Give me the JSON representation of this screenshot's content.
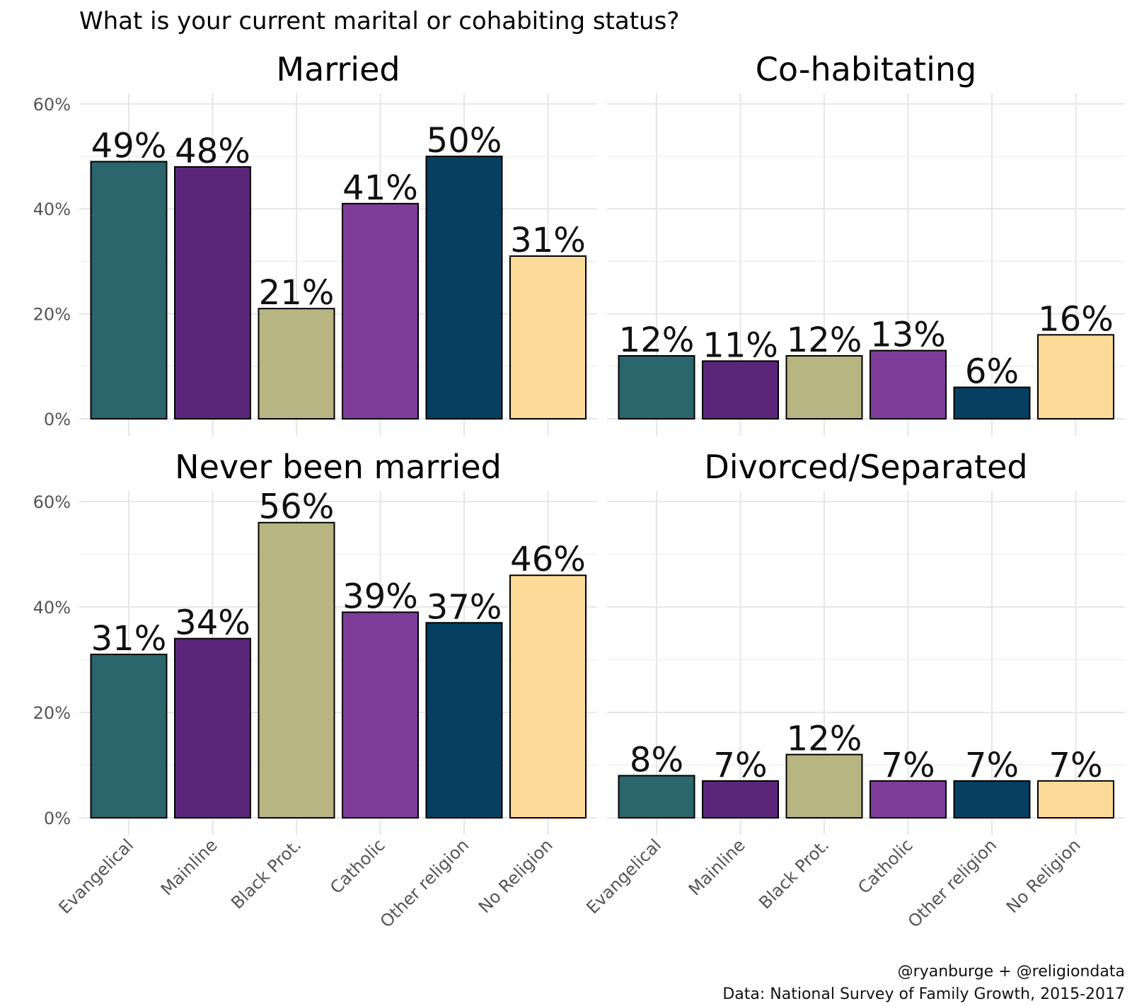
{
  "chart_data": {
    "type": "bar",
    "title": "What is your current marital or cohabiting status?",
    "categories": [
      "Evangelical",
      "Mainline",
      "Black Prot.",
      "Catholic",
      "Other religion",
      "No Religion"
    ],
    "colors": [
      "#2A666B",
      "#5B267A",
      "#B7B582",
      "#7E3D98",
      "#053F62",
      "#FCDA97"
    ],
    "yticks": [
      "0%",
      "20%",
      "40%",
      "60%"
    ],
    "ylim": [
      0,
      62
    ],
    "panels": [
      {
        "name": "Married",
        "values": [
          49,
          48,
          21,
          41,
          50,
          31
        ],
        "labels": [
          "49%",
          "48%",
          "21%",
          "41%",
          "50%",
          "31%"
        ]
      },
      {
        "name": "Co-habitating",
        "values": [
          12,
          11,
          12,
          13,
          6,
          16
        ],
        "labels": [
          "12%",
          "11%",
          "12%",
          "13%",
          "6%",
          "16%"
        ]
      },
      {
        "name": "Never been married",
        "values": [
          31,
          34,
          56,
          39,
          37,
          46
        ],
        "labels": [
          "31%",
          "34%",
          "56%",
          "39%",
          "37%",
          "46%"
        ]
      },
      {
        "name": "Divorced/Separated",
        "values": [
          8,
          7,
          12,
          7,
          7,
          7
        ],
        "labels": [
          "8%",
          "7%",
          "12%",
          "7%",
          "7%",
          "7%"
        ]
      }
    ],
    "caption": [
      "@ryanburge + @religiondata",
      "Data: National Survey of Family Growth, 2015-2017"
    ]
  }
}
